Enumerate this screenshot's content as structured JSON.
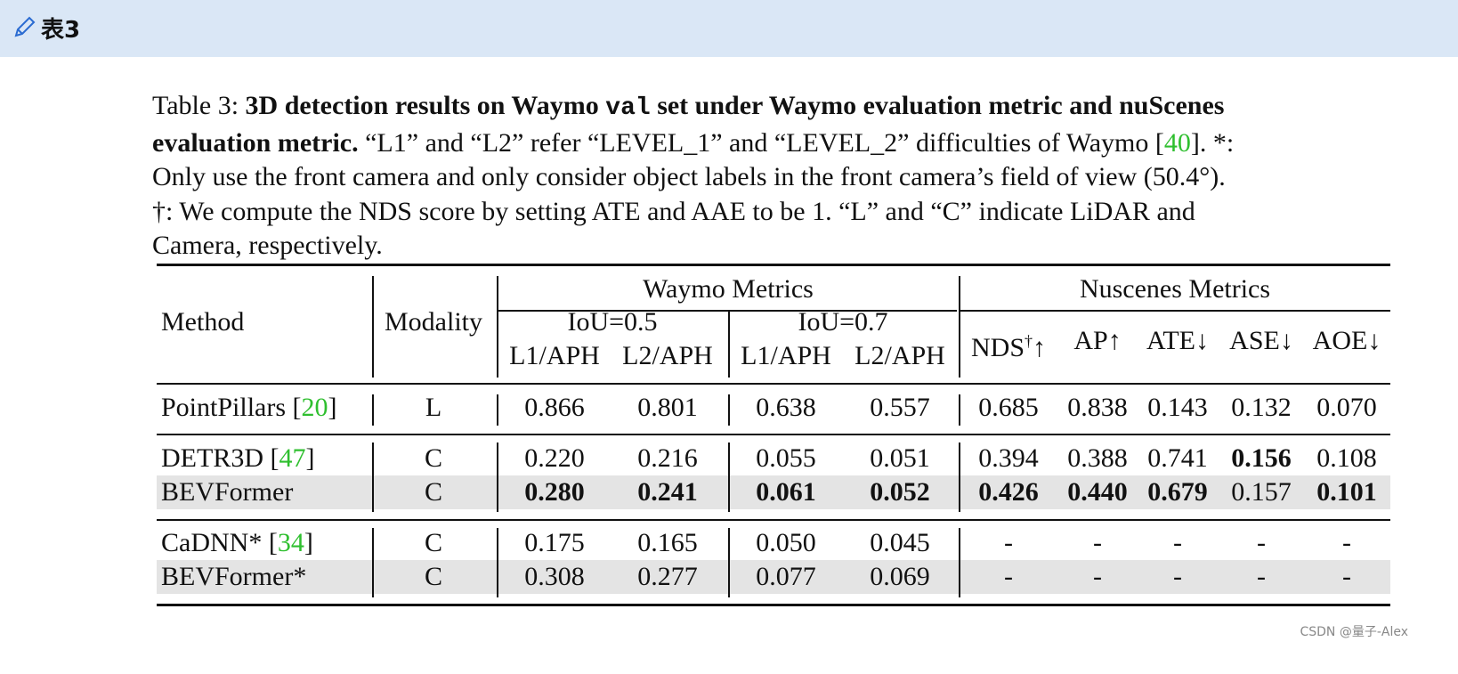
{
  "header": {
    "title": "表3"
  },
  "caption": {
    "parts": [
      "Table 3: ",
      "3D detection results on Waymo ",
      "val",
      " set under Waymo evaluation metric and nuScenes",
      "evaluation metric.",
      " “L1” and “L2” refer “LEVEL_1” and “LEVEL_2” difficulties of Waymo [",
      "40",
      "]. *:",
      "Only use the front camera and only consider object labels in the front camera’s field of view (50.4°).",
      "†: We compute the NDS score by setting ATE and AAE to be 1. “L” and “C” indicate LiDAR and",
      "Camera, respectively."
    ]
  },
  "table": {
    "header": {
      "method": "Method",
      "modality": "Modality",
      "waymo": "Waymo Metrics",
      "nuscenes": "Nuscenes Metrics",
      "iou": [
        "IoU=0.5",
        "IoU=0.7"
      ],
      "columns": [
        "L1/APH",
        "L2/APH",
        "L1/APH",
        "L2/APH",
        [
          "NDS",
          "†",
          "↑"
        ],
        "AP↑",
        "ATE↓",
        "ASE↓",
        "AOE↓"
      ]
    },
    "groups": [
      [
        {
          "method": [
            "PointPillars [",
            "20",
            "]"
          ],
          "modality": "L",
          "values": [
            "0.866",
            "0.801",
            "0.638",
            "0.557",
            "0.685",
            "0.838",
            "0.143",
            "0.132",
            "0.070"
          ],
          "bold": [],
          "shaded": false
        }
      ],
      [
        {
          "method": [
            "DETR3D [",
            "47",
            "]"
          ],
          "modality": "C",
          "values": [
            "0.220",
            "0.216",
            "0.055",
            "0.051",
            "0.394",
            "0.388",
            "0.741",
            "0.156",
            "0.108"
          ],
          "bold": [
            7
          ],
          "shaded": false
        },
        {
          "method": [
            "BEVFormer"
          ],
          "modality": "C",
          "values": [
            "0.280",
            "0.241",
            "0.061",
            "0.052",
            "0.426",
            "0.440",
            "0.679",
            "0.157",
            "0.101"
          ],
          "bold": [
            0,
            1,
            2,
            3,
            4,
            5,
            6,
            8
          ],
          "shaded": true
        }
      ],
      [
        {
          "method": [
            "CaDNN* [",
            "34",
            "]"
          ],
          "modality": "C",
          "values": [
            "0.175",
            "0.165",
            "0.050",
            "0.045",
            "-",
            "-",
            "-",
            "-",
            "-"
          ],
          "bold": [],
          "shaded": false
        },
        {
          "method": [
            "BEVFormer*"
          ],
          "modality": "C",
          "values": [
            "0.308",
            "0.277",
            "0.077",
            "0.069",
            "-",
            "-",
            "-",
            "-",
            "-"
          ],
          "bold": [],
          "shaded": true
        }
      ]
    ]
  },
  "watermark": "CSDN @量子-Alex"
}
